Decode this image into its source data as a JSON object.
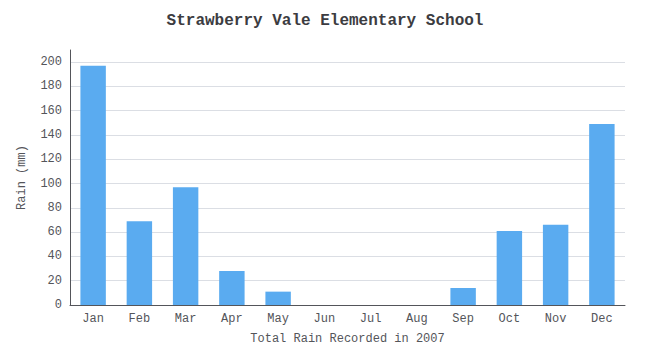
{
  "chart_data": {
    "type": "bar",
    "title": "Strawberry Vale Elementary School",
    "xlabel": "Total Rain Recorded in 2007",
    "ylabel": "Rain (mm)",
    "categories": [
      "Jan",
      "Feb",
      "Mar",
      "Apr",
      "May",
      "Jun",
      "Jul",
      "Aug",
      "Sep",
      "Oct",
      "Nov",
      "Dec"
    ],
    "values": [
      197,
      69,
      97,
      28,
      11,
      0,
      0,
      0,
      14,
      61,
      66,
      149
    ],
    "color": "#5aabf0",
    "ylim": [
      0,
      210
    ],
    "yticks": [
      0,
      20,
      40,
      60,
      80,
      100,
      120,
      140,
      160,
      180,
      200
    ],
    "grid": true
  }
}
